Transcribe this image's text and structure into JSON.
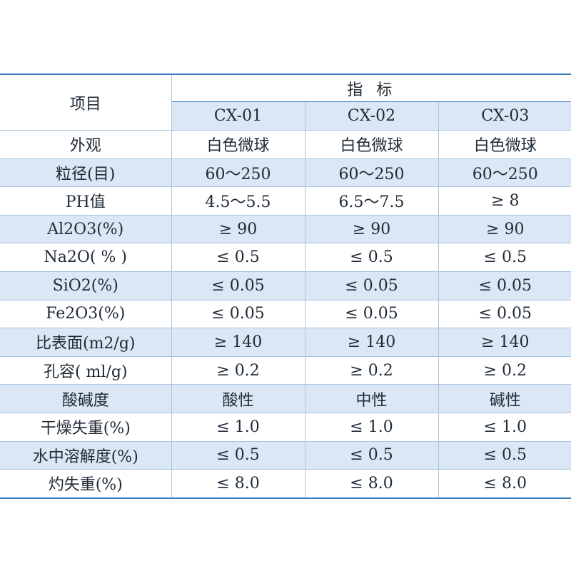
{
  "table": {
    "item_header": "项目",
    "index_header": "指 标",
    "models": [
      "CX-01",
      "CX-02",
      "CX-03"
    ],
    "rows": [
      {
        "label": "外观",
        "values": [
          "白色微球",
          "白色微球",
          "白色微球"
        ]
      },
      {
        "label": "粒径(目)",
        "values": [
          "60～250",
          "60～250",
          "60～250"
        ]
      },
      {
        "label": "PH值",
        "values": [
          "4.5～5.5",
          "6.5～7.5",
          "≥ 8"
        ]
      },
      {
        "label": "Al2O3(%)",
        "values": [
          "≥ 90",
          "≥ 90",
          "≥ 90"
        ]
      },
      {
        "label": "Na2O( % )",
        "values": [
          "≤ 0.5",
          "≤ 0.5",
          "≤ 0.5"
        ]
      },
      {
        "label": "SiO2(%)",
        "values": [
          "≤ 0.05",
          "≤ 0.05",
          "≤ 0.05"
        ]
      },
      {
        "label": "Fe2O3(%)",
        "values": [
          "≤ 0.05",
          "≤ 0.05",
          "≤ 0.05"
        ]
      },
      {
        "label": "比表面(m2/g)",
        "values": [
          "≥ 140",
          "≥ 140",
          "≥ 140"
        ]
      },
      {
        "label": "孔容( ml/g)",
        "values": [
          "≥ 0.2",
          "≥ 0.2",
          "≥ 0.2"
        ]
      },
      {
        "label": "酸碱度",
        "values": [
          "酸性",
          "中性",
          "碱性"
        ]
      },
      {
        "label": "干燥失重(%)",
        "values": [
          "≤ 1.0",
          "≤ 1.0",
          "≤ 1.0"
        ]
      },
      {
        "label": "水中溶解度(%)",
        "values": [
          "≤ 0.5",
          "≤ 0.5",
          "≤ 0.5"
        ]
      },
      {
        "label": "灼失重(%)",
        "values": [
          "≤ 8.0",
          "≤ 8.0",
          "≤ 8.0"
        ]
      }
    ]
  },
  "colors": {
    "border": "#3a79bf",
    "grid": "#a8c4e2",
    "shade": "#dbe7f4",
    "text": "#1f2a36"
  }
}
